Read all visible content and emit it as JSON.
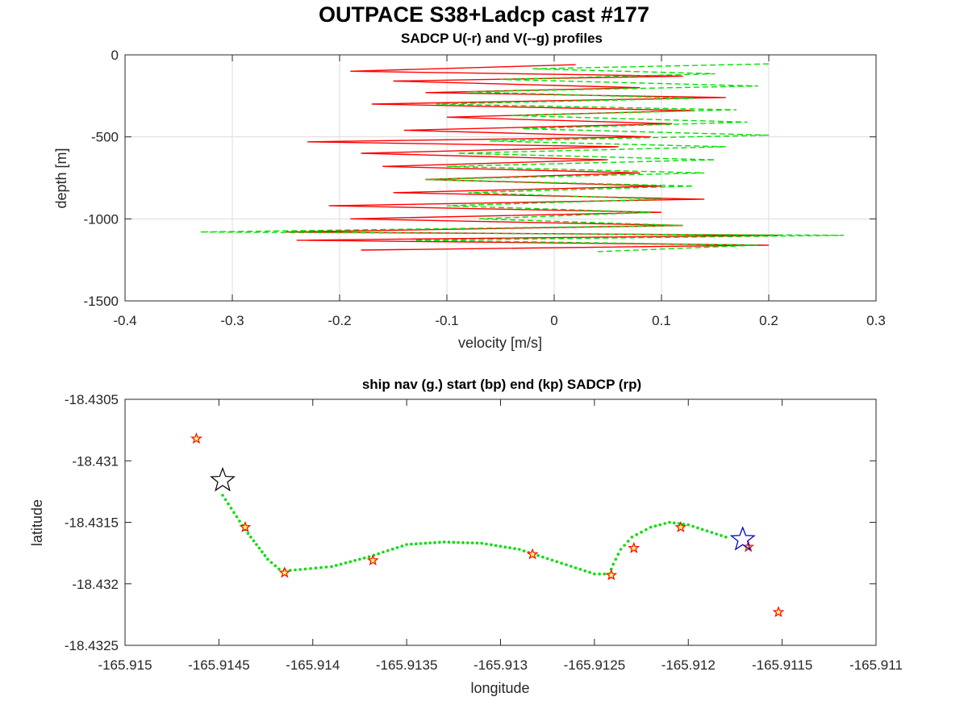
{
  "figure": {
    "title": "OUTPACE S38+Ladcp cast #177"
  },
  "chart_data": [
    {
      "type": "line",
      "title": "SADCP U(-r) and V(--g) profiles",
      "xlabel": "velocity [m/s]",
      "ylabel": "depth [m]",
      "xlim": [
        -0.4,
        0.3
      ],
      "ylim": [
        -1500,
        0
      ],
      "xticks": [
        "-0.4",
        "-0.3",
        "-0.2",
        "-0.1",
        "0",
        "0.1",
        "0.2",
        "0.3"
      ],
      "yticks": [
        "-1500",
        "-1000",
        "-500",
        "0"
      ],
      "grid": true,
      "series": [
        {
          "name": "U",
          "color": "#ff0000",
          "style": "solid",
          "depth": [
            -60,
            -100,
            -130,
            -160,
            -200,
            -230,
            -260,
            -300,
            -340,
            -380,
            -420,
            -460,
            -500,
            -530,
            -560,
            -600,
            -640,
            -680,
            -720,
            -760,
            -800,
            -840,
            -880,
            -920,
            -960,
            -1000,
            -1040,
            -1080,
            -1100,
            -1130,
            -1160,
            -1190
          ],
          "values": [
            0.02,
            -0.19,
            0.12,
            -0.15,
            0.08,
            -0.12,
            0.16,
            -0.17,
            0.13,
            -0.1,
            0.11,
            -0.14,
            0.09,
            -0.23,
            0.06,
            -0.18,
            0.05,
            -0.16,
            0.08,
            -0.12,
            0.1,
            -0.15,
            0.14,
            -0.21,
            0.1,
            -0.19,
            0.12,
            -0.25,
            0.21,
            -0.24,
            0.2,
            -0.18
          ]
        },
        {
          "name": "V",
          "color": "#00e000",
          "style": "dashed",
          "depth": [
            -55,
            -85,
            -115,
            -150,
            -190,
            -225,
            -265,
            -300,
            -335,
            -370,
            -410,
            -450,
            -490,
            -525,
            -560,
            -600,
            -640,
            -680,
            -720,
            -760,
            -800,
            -840,
            -880,
            -920,
            -960,
            -1000,
            -1040,
            -1080,
            -1100,
            -1130,
            -1160,
            -1200
          ],
          "values": [
            0.2,
            -0.02,
            0.15,
            -0.05,
            0.19,
            -0.08,
            0.13,
            -0.11,
            0.17,
            -0.04,
            0.18,
            -0.03,
            0.2,
            -0.06,
            0.16,
            -0.09,
            0.15,
            -0.1,
            0.14,
            -0.12,
            0.13,
            -0.08,
            0.1,
            -0.1,
            0.09,
            -0.07,
            0.12,
            -0.33,
            0.27,
            -0.13,
            0.19,
            0.04
          ]
        }
      ]
    },
    {
      "type": "scatter",
      "title": "ship nav (g.) start (bp) end (kp) SADCP (rp)",
      "xlabel": "longitude",
      "ylabel": "latitude",
      "xlim": [
        -165.915,
        -165.911
      ],
      "ylim": [
        -18.4325,
        -18.4305
      ],
      "xticks": [
        "-165.915",
        "-165.9145",
        "-165.914",
        "-165.9135",
        "-165.913",
        "-165.9125",
        "-165.912",
        "-165.9115",
        "-165.911"
      ],
      "yticks": [
        "-18.4325",
        "-18.432",
        "-18.4315",
        "-18.431",
        "-18.4305"
      ],
      "grid": false,
      "ship_nav": {
        "color": "#00e000",
        "lon": [
          -165.91448,
          -165.91442,
          -165.91436,
          -165.9143,
          -165.91424,
          -165.91418,
          -165.91412,
          -165.91404,
          -165.9139,
          -165.9137,
          -165.9135,
          -165.9133,
          -165.9131,
          -165.9129,
          -165.9127,
          -165.9125,
          -165.91242,
          -165.9124,
          -165.91236,
          -165.9123,
          -165.9122,
          -165.9121,
          -165.912,
          -165.9119,
          -165.9118
        ],
        "lat": [
          -18.43128,
          -18.43142,
          -18.43156,
          -18.43168,
          -18.4318,
          -18.43188,
          -18.43189,
          -18.43188,
          -18.43186,
          -18.43178,
          -18.43168,
          -18.43166,
          -18.43167,
          -18.43172,
          -18.43182,
          -18.43192,
          -18.43192,
          -18.43184,
          -18.43172,
          -18.43162,
          -18.43154,
          -18.4315,
          -18.43152,
          -18.43157,
          -18.43162
        ]
      },
      "start": {
        "lon": -165.91171,
        "lat": -18.43164,
        "color": "#0000cc"
      },
      "end": {
        "lon": -165.91448,
        "lat": -18.43116,
        "color": "#000000"
      },
      "sadcp": {
        "color": "#ff0000",
        "lon": [
          -165.91462,
          -165.91436,
          -165.91415,
          -165.91368,
          -165.91283,
          -165.91241,
          -165.91229,
          -165.91204,
          -165.91168,
          -165.91152
        ],
        "lat": [
          -18.43082,
          -18.43154,
          -18.43191,
          -18.43181,
          -18.43176,
          -18.43193,
          -18.43171,
          -18.43154,
          -18.4317,
          -18.43223
        ]
      }
    }
  ]
}
